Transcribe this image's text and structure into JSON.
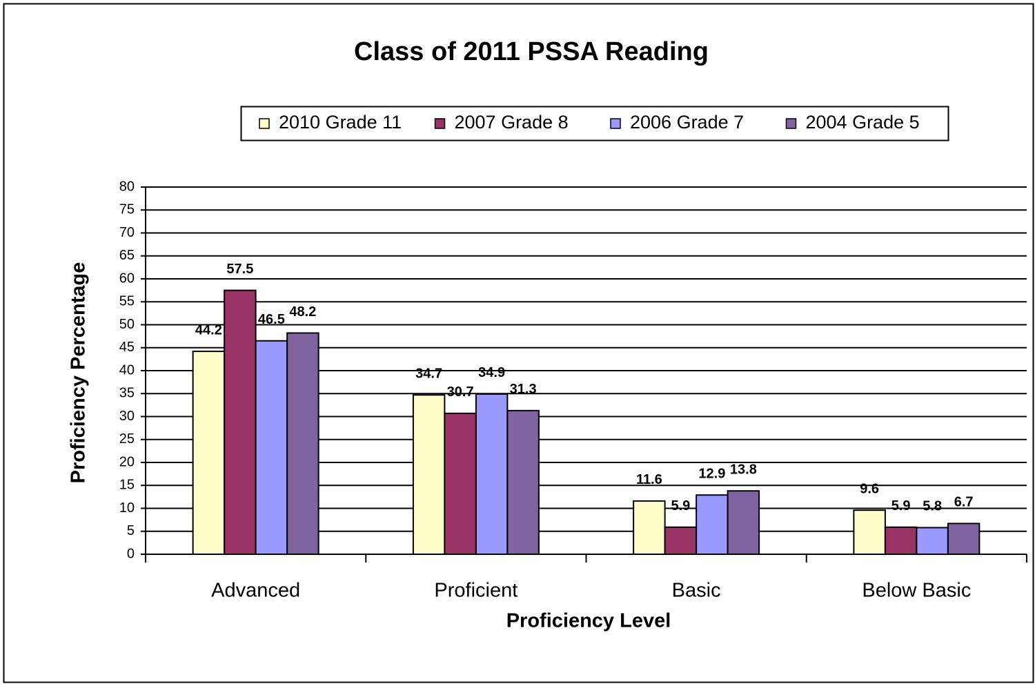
{
  "chart_data": {
    "type": "bar",
    "title": "Class of 2011 PSSA Reading",
    "x_label": "Proficiency Level",
    "y_label": "Proficiency Percentage",
    "categories": [
      "Advanced",
      "Proficient",
      "Basic",
      "Below Basic"
    ],
    "series": [
      {
        "name": "2010 Grade 11",
        "color": "#ffffcc",
        "values": [
          44.2,
          34.7,
          11.6,
          9.6
        ]
      },
      {
        "name": "2007 Grade 8",
        "color": "#993366",
        "values": [
          57.5,
          30.7,
          5.9,
          5.9
        ]
      },
      {
        "name": "2006 Grade 7",
        "color": "#9999ff",
        "values": [
          46.5,
          34.9,
          12.9,
          5.8
        ]
      },
      {
        "name": "2004 Grade 5",
        "color": "#8064a2",
        "values": [
          48.2,
          31.3,
          13.8,
          6.7
        ]
      }
    ],
    "ylim": [
      0,
      80
    ],
    "yticks": [
      0,
      5,
      10,
      15,
      20,
      25,
      30,
      35,
      40,
      45,
      50,
      55,
      60,
      65,
      70,
      75,
      80
    ],
    "grid": true,
    "legend": "top"
  }
}
